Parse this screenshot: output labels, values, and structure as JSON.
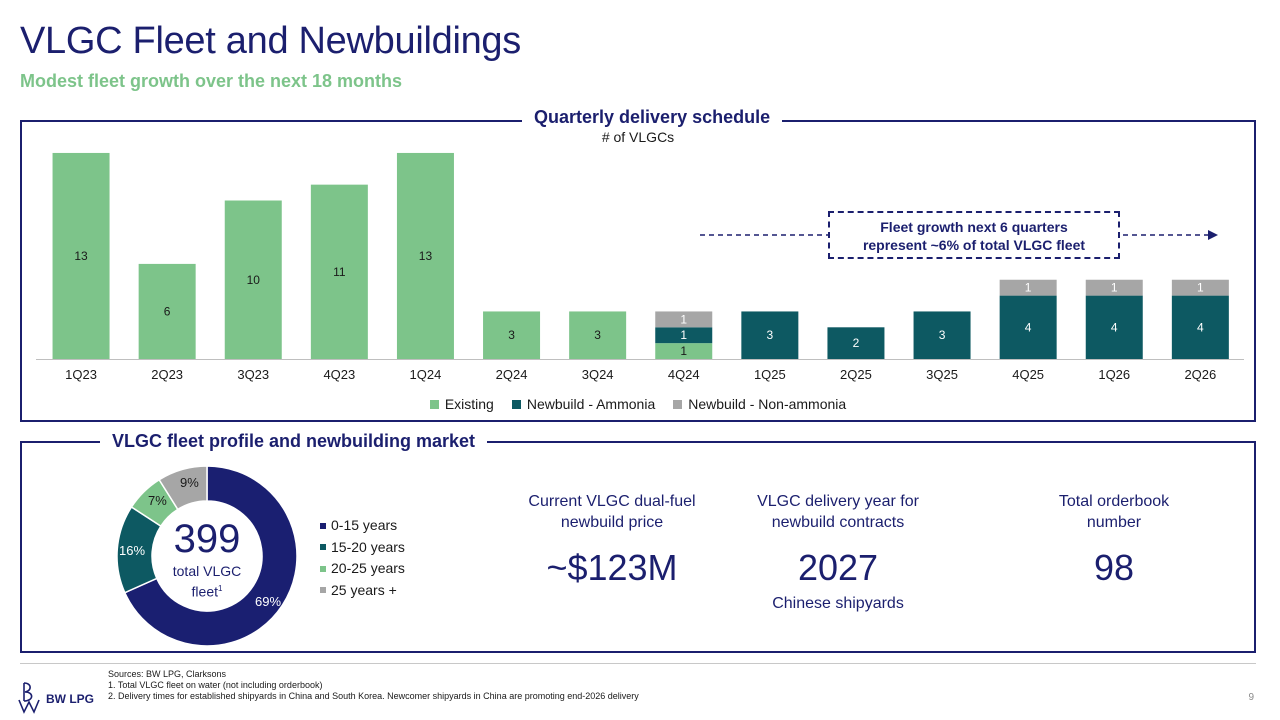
{
  "header": {
    "title": "VLGC Fleet and Newbuildings",
    "subtitle": "Modest fleet growth over the next 18 months"
  },
  "top_panel": {
    "title": "Quarterly delivery schedule",
    "subtitle": "# of VLGCs",
    "callout": [
      "Fleet growth next 6 quarters",
      "represent ~6% of total VLGC fleet"
    ]
  },
  "colors": {
    "existing": "#7dc48a",
    "ammonia": "#0d5962",
    "non_ammonia": "#a6a6a6",
    "navy": "#1b1f6e"
  },
  "chart_data": {
    "type": "bar",
    "stacked": true,
    "categories": [
      "1Q23",
      "2Q23",
      "3Q23",
      "4Q23",
      "1Q24",
      "2Q24",
      "3Q24",
      "4Q24",
      "1Q25",
      "2Q25",
      "3Q25",
      "4Q25",
      "1Q26",
      "2Q26"
    ],
    "series": [
      {
        "name": "Existing",
        "values": [
          13,
          6,
          10,
          11,
          13,
          3,
          3,
          1,
          0,
          0,
          0,
          0,
          0,
          0
        ]
      },
      {
        "name": "Newbuild - Ammonia",
        "values": [
          0,
          0,
          0,
          0,
          0,
          0,
          0,
          1,
          3,
          2,
          3,
          4,
          4,
          4
        ]
      },
      {
        "name": "Newbuild - Non-ammonia",
        "values": [
          0,
          0,
          0,
          0,
          0,
          0,
          0,
          1,
          0,
          0,
          0,
          1,
          1,
          1
        ]
      }
    ],
    "title": "Quarterly delivery schedule",
    "ylabel": "# of VLGCs",
    "ylim": [
      0,
      13
    ],
    "legend": "bottom",
    "grid": false
  },
  "bottom_panel": {
    "title": "VLGC fleet profile and newbuilding market",
    "donut": {
      "total": "399",
      "label_line1": "total VLGC",
      "label_line2": "fleet",
      "label_sup": "1",
      "slices": [
        {
          "name": "0-15 years",
          "pct": 69,
          "label": "69%",
          "color": "#1a1f71"
        },
        {
          "name": "15-20 years",
          "pct": 16,
          "label": "16%",
          "color": "#0d5962"
        },
        {
          "name": "20-25 years",
          "pct": 7,
          "label": "7%",
          "color": "#7dc48a"
        },
        {
          "name": "25 years +",
          "pct": 9,
          "label": "9%",
          "color": "#a6a6a6"
        }
      ]
    },
    "kpis": [
      {
        "label1": "Current VLGC dual-fuel",
        "label2": "newbuild price",
        "value": "~$123M",
        "foot": ""
      },
      {
        "label1": "VLGC delivery year for",
        "label2": "newbuild contracts",
        "value": "2027",
        "foot": "Chinese shipyards"
      },
      {
        "label1": "Total orderbook",
        "label2": "number",
        "value": "98",
        "foot": ""
      }
    ]
  },
  "footer": {
    "sources": "Sources: BW LPG, Clarksons",
    "note1": "1.   Total VLGC fleet on water (not including orderbook)",
    "note2": "2.   Delivery times for established shipyards in China and South Korea. Newcomer shipyards in China are promoting end-2026 delivery",
    "logo_text": "BW LPG",
    "page_number": "9"
  }
}
